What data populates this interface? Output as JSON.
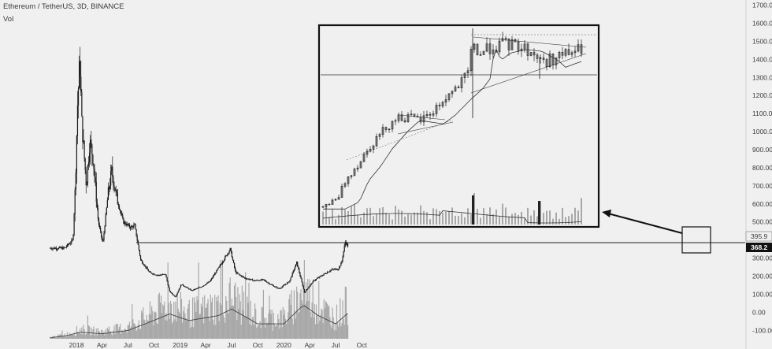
{
  "header": {
    "symbol": "Ethereum / TetherUS, 3D, BINANCE",
    "volume_label": "Vol"
  },
  "price_axis": {
    "ticks": [
      1700,
      1600,
      1500,
      1400,
      1300,
      1200,
      1100,
      1000,
      900,
      800,
      700,
      600,
      500,
      400,
      300,
      200,
      100,
      0,
      -100
    ],
    "tick_labels": [
      "1700.00",
      "1600.00",
      "1500.00",
      "1400.00",
      "1300.00",
      "1200.00",
      "1100.00",
      "1000.00",
      "900.00",
      "800.00",
      "700.00",
      "600.00",
      "500.00",
      "400.00",
      "300.00",
      "200.00",
      "100.00",
      "0.00",
      "-100.00"
    ],
    "marker_top": "395.9",
    "marker_current": "368.2"
  },
  "time_axis": {
    "labels": [
      "2018",
      "Apr",
      "Jul",
      "Oct",
      "2019",
      "Apr",
      "Jul",
      "Oct",
      "2020",
      "Apr",
      "Jul",
      "Oct"
    ]
  },
  "colors": {
    "candles": "#1a1a1a",
    "volume": "#a8a8a8",
    "ma": "#444444",
    "background": "#f0f0f0",
    "current_tag": "#111111"
  },
  "chart_data": {
    "type": "candlestick",
    "title": "Ethereum / TetherUS, 3D, BINANCE",
    "ylim": [
      -150,
      1750
    ],
    "y_ticks": [
      1700,
      1600,
      1500,
      1400,
      1300,
      1200,
      1100,
      1000,
      900,
      800,
      700,
      600,
      500,
      400,
      300,
      200,
      100,
      0,
      -100
    ],
    "x_ticks": [
      "2018",
      "Apr",
      "Jul",
      "Oct",
      "2019",
      "Apr",
      "Jul",
      "Oct",
      "2020",
      "Apr",
      "Jul",
      "Oct"
    ],
    "close_path": [
      {
        "date": "2017-11-20",
        "close": 355
      },
      {
        "date": "2017-12-20",
        "close": 400
      },
      {
        "date": "2017-12-28",
        "close": 700
      },
      {
        "date": "2018-01-05",
        "close": 1150
      },
      {
        "date": "2018-01-13",
        "close": 1400
      },
      {
        "date": "2018-01-20",
        "close": 1050
      },
      {
        "date": "2018-02-05",
        "close": 700
      },
      {
        "date": "2018-02-17",
        "close": 950
      },
      {
        "date": "2018-03-01",
        "close": 850
      },
      {
        "date": "2018-03-19",
        "close": 500
      },
      {
        "date": "2018-04-04",
        "close": 380
      },
      {
        "date": "2018-04-22",
        "close": 650
      },
      {
        "date": "2018-05-05",
        "close": 780
      },
      {
        "date": "2018-05-25",
        "close": 620
      },
      {
        "date": "2018-06-15",
        "close": 500
      },
      {
        "date": "2018-07-10",
        "close": 470
      },
      {
        "date": "2018-07-25",
        "close": 480
      },
      {
        "date": "2018-08-15",
        "close": 290
      },
      {
        "date": "2018-09-15",
        "close": 220
      },
      {
        "date": "2018-10-15",
        "close": 205
      },
      {
        "date": "2018-11-10",
        "close": 210
      },
      {
        "date": "2018-11-25",
        "close": 115
      },
      {
        "date": "2018-12-15",
        "close": 85
      },
      {
        "date": "2019-01-05",
        "close": 155
      },
      {
        "date": "2019-02-10",
        "close": 120
      },
      {
        "date": "2019-03-15",
        "close": 140
      },
      {
        "date": "2019-04-15",
        "close": 170
      },
      {
        "date": "2019-05-20",
        "close": 255
      },
      {
        "date": "2019-06-26",
        "close": 350
      },
      {
        "date": "2019-07-15",
        "close": 220
      },
      {
        "date": "2019-08-15",
        "close": 190
      },
      {
        "date": "2019-09-20",
        "close": 175
      },
      {
        "date": "2019-10-20",
        "close": 180
      },
      {
        "date": "2019-11-20",
        "close": 150
      },
      {
        "date": "2019-12-15",
        "close": 130
      },
      {
        "date": "2020-01-20",
        "close": 170
      },
      {
        "date": "2020-02-15",
        "close": 275
      },
      {
        "date": "2020-03-13",
        "close": 110
      },
      {
        "date": "2020-04-15",
        "close": 175
      },
      {
        "date": "2020-05-15",
        "close": 205
      },
      {
        "date": "2020-06-15",
        "close": 235
      },
      {
        "date": "2020-07-10",
        "close": 240
      },
      {
        "date": "2020-07-22",
        "close": 275
      },
      {
        "date": "2020-07-28",
        "close": 330
      },
      {
        "date": "2020-08-04",
        "close": 390
      },
      {
        "date": "2020-08-13",
        "close": 368
      }
    ],
    "volume_path": [
      {
        "date": "2017-10-01",
        "value": 3
      },
      {
        "date": "2017-12-01",
        "value": 10
      },
      {
        "date": "2018-01-15",
        "value": 20
      },
      {
        "date": "2018-04-01",
        "value": 15
      },
      {
        "date": "2018-07-01",
        "value": 25
      },
      {
        "date": "2018-09-15",
        "value": 50
      },
      {
        "date": "2018-11-25",
        "value": 75
      },
      {
        "date": "2019-02-01",
        "value": 55
      },
      {
        "date": "2019-05-15",
        "value": 70
      },
      {
        "date": "2019-07-01",
        "value": 90
      },
      {
        "date": "2019-10-01",
        "value": 45
      },
      {
        "date": "2020-01-01",
        "value": 45
      },
      {
        "date": "2020-03-01",
        "value": 95
      },
      {
        "date": "2020-03-13",
        "value": 100
      },
      {
        "date": "2020-05-01",
        "value": 70
      },
      {
        "date": "2020-07-01",
        "value": 45
      },
      {
        "date": "2020-08-10",
        "value": 75
      }
    ],
    "support_line": {
      "value": 375,
      "from": "2018-04-06"
    },
    "inset": {
      "description": "Zoomed view of 2020 rally",
      "y_ticks": [
        500,
        600,
        700,
        800,
        900,
        1000,
        1100,
        1200,
        1300,
        1400,
        1500
      ],
      "horizontal_level": 1285,
      "ascending_support_end": 1430,
      "triangle_top": 1500
    }
  }
}
